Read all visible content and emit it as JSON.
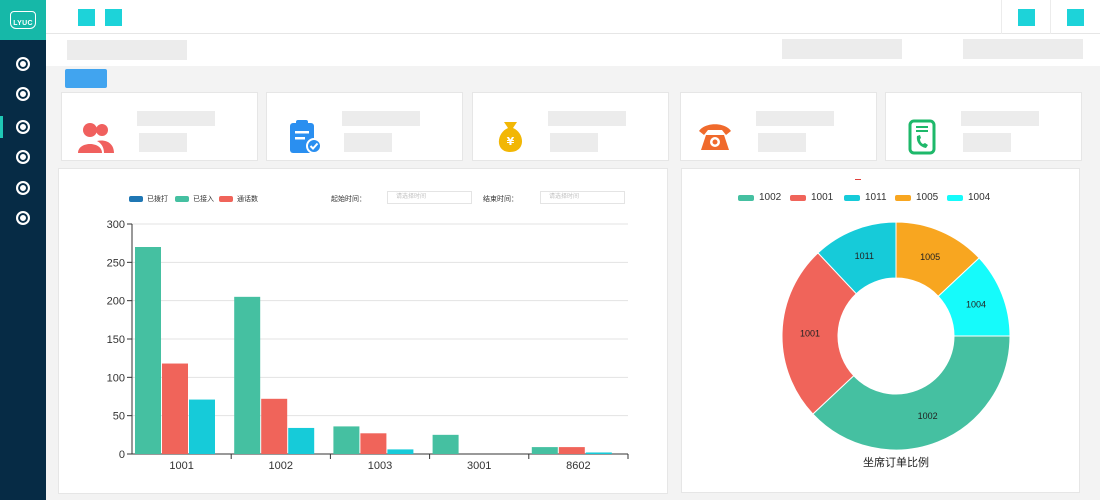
{
  "brand": {
    "logo_text": "LYUC"
  },
  "sidebar": {
    "items": [
      {
        "name": "nav-item-1",
        "active": false
      },
      {
        "name": "nav-item-2",
        "active": false
      },
      {
        "name": "nav-item-3",
        "active": true
      },
      {
        "name": "nav-item-4",
        "active": false
      },
      {
        "name": "nav-item-5",
        "active": false
      },
      {
        "name": "nav-item-6",
        "active": false
      }
    ]
  },
  "colors": {
    "accent": "#16b8a8",
    "sidebar": "#062b45",
    "tab": "#41a4ef",
    "teal_icon": "#1dd3d9"
  },
  "cards": [
    {
      "icon": "users-icon",
      "color": "#f0605e"
    },
    {
      "icon": "clipboard-check-icon",
      "color": "#2a8ff0"
    },
    {
      "icon": "money-bag-icon",
      "color": "#f2b705"
    },
    {
      "icon": "telephone-icon",
      "color": "#f06a2c"
    },
    {
      "icon": "phone-document-icon",
      "color": "#1eb86a"
    }
  ],
  "bar_panel": {
    "legend": [
      {
        "label": "已拨打",
        "color": "#1f77b4"
      },
      {
        "label": "已接入",
        "color": "#45c0a1"
      },
      {
        "label": "通话数",
        "color": "#f0645a"
      }
    ],
    "start_label": "起始时间：",
    "start_placeholder": "请选择时间",
    "end_label": "结束时间：",
    "end_placeholder": "请选择时间"
  },
  "chart_data": [
    {
      "type": "bar",
      "categories": [
        "1001",
        "1002",
        "1003",
        "3001",
        "8602"
      ],
      "ylim": [
        0,
        300
      ],
      "yticks": [
        0,
        50,
        100,
        150,
        200,
        250,
        300
      ],
      "series": [
        {
          "color": "#45c0a1",
          "values": [
            270,
            205,
            36,
            25,
            9
          ]
        },
        {
          "color": "#f0645a",
          "values": [
            118,
            72,
            27,
            0,
            9
          ]
        },
        {
          "color": "#16cbd9",
          "values": [
            71,
            34,
            6,
            0,
            2
          ]
        }
      ]
    },
    {
      "type": "pie",
      "title": "坐席订单比例",
      "legend_position": "top",
      "slices": [
        {
          "name": "1002",
          "value": 38,
          "color": "#45c0a1"
        },
        {
          "name": "1001",
          "value": 25,
          "color": "#f0645a"
        },
        {
          "name": "1011",
          "value": 12,
          "color": "#16cbd9"
        },
        {
          "name": "1005",
          "value": 13,
          "color": "#f8a620"
        },
        {
          "name": "1004",
          "value": 12,
          "color": "#15fbfb"
        }
      ]
    }
  ]
}
